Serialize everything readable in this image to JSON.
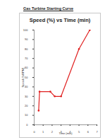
{
  "heading": "Gas Turbine Starting Curve",
  "chart_data": {
    "type": "line",
    "title": "Speed (%) vs Time (min)",
    "x_label": "Time (min)",
    "y_label": "Speed (%RPM)",
    "x": [
      0.5,
      0.6,
      1.8,
      2.3,
      3.0,
      5.0,
      6.2
    ],
    "values": [
      15,
      35,
      35,
      30,
      30,
      80,
      100
    ],
    "color": "#e02020",
    "marker": "circle",
    "line_style": "solid",
    "xlim": [
      0,
      7
    ],
    "xticks": [
      0,
      1,
      2,
      3,
      4,
      5,
      6,
      7
    ],
    "ylim": [
      0,
      100
    ],
    "yticks": [
      0,
      10,
      20,
      30,
      40,
      50,
      60,
      70,
      80,
      90,
      100
    ],
    "grid": false
  }
}
